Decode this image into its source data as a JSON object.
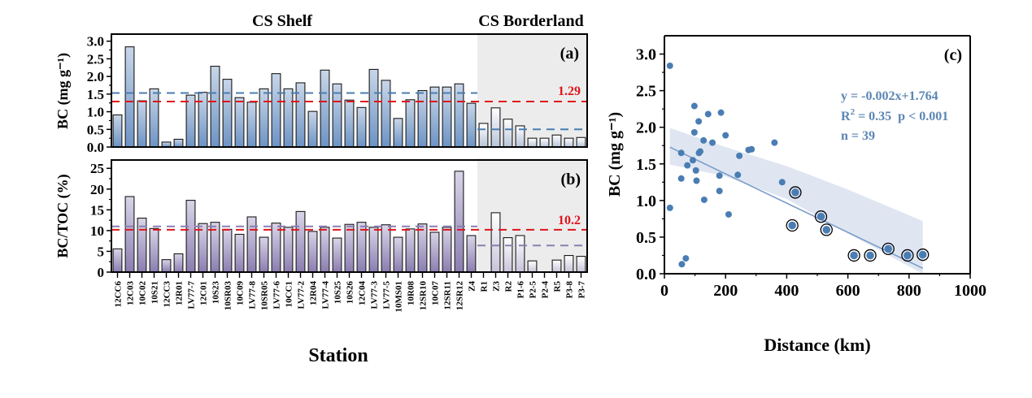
{
  "figure": {
    "region_titles": [
      "CS Shelf",
      "CS Borderland"
    ],
    "x_axis_title": "Station"
  },
  "chart_data": [
    {
      "id": "a",
      "type": "bar",
      "panel_tag": "(a)",
      "ylabel": "BC (mg g⁻¹)",
      "ylim": [
        0,
        3.2
      ],
      "yticks": [
        "0.0",
        "0.5",
        "1.0",
        "1.5",
        "2.0",
        "2.5",
        "3.0"
      ],
      "ytick_values": [
        0,
        0.5,
        1.0,
        1.5,
        2.0,
        2.5,
        3.0
      ],
      "categories": [
        "12CC6",
        "12C03",
        "10C02",
        "10S21",
        "12CC3",
        "12R01",
        "LV77-7",
        "12C01",
        "10S23",
        "10SR03",
        "10C09",
        "LV77-8",
        "10SR05",
        "LV77-6",
        "10CC1",
        "LV77-2",
        "12R04",
        "LV77-4",
        "10S25",
        "10S26",
        "12C04",
        "LV77-3",
        "LV77-5",
        "10MS01",
        "10R08",
        "12SR10",
        "10C07",
        "12SR11",
        "12SR12",
        "Z4",
        "R1",
        "Z3",
        "R2",
        "P1-6",
        "P2-5",
        "P2-4",
        "R5",
        "P3-8",
        "P3-7"
      ],
      "values": [
        0.91,
        2.84,
        1.31,
        1.65,
        0.14,
        0.22,
        1.47,
        1.55,
        2.29,
        1.92,
        1.4,
        1.27,
        1.65,
        2.08,
        1.65,
        1.82,
        1.01,
        2.18,
        1.79,
        1.33,
        1.12,
        2.2,
        1.89,
        0.81,
        1.34,
        1.6,
        1.7,
        1.7,
        1.79,
        1.24,
        0.67,
        1.11,
        0.79,
        0.6,
        0.25,
        0.25,
        0.34,
        0.25,
        0.27
      ],
      "shelf_count": 30,
      "reference_lines": [
        {
          "label": "1.29",
          "value": 1.29,
          "color": "#e0141c",
          "span": "all",
          "show_label": true
        },
        {
          "label": "shelf mean",
          "value": 1.53,
          "color": "#4a7db3",
          "span": "shelf",
          "show_label": false
        },
        {
          "label": "borderland mean",
          "value": 0.5,
          "color": "#4a7db3",
          "span": "borderland",
          "show_label": false
        }
      ],
      "bar_color_top": "#c9d6e8",
      "bar_color_bottom": "#6c93c4",
      "borderland_bar_top": "#ffffff",
      "borderland_bar_bottom": "#b7c4d8"
    },
    {
      "id": "b",
      "type": "bar",
      "panel_tag": "(b)",
      "ylabel": "BC/TOC (%)",
      "ylim": [
        0,
        27
      ],
      "yticks": [
        "0",
        "5",
        "10",
        "15",
        "20",
        "25"
      ],
      "ytick_values": [
        0,
        5,
        10,
        15,
        20,
        25
      ],
      "categories": [
        "12CC6",
        "12C03",
        "10C02",
        "10S21",
        "12CC3",
        "12R01",
        "LV77-7",
        "12C01",
        "10S23",
        "10SR03",
        "10C09",
        "LV77-8",
        "10SR05",
        "LV77-6",
        "10CC1",
        "LV77-2",
        "12R04",
        "LV77-4",
        "10S25",
        "10S26",
        "12C04",
        "LV77-3",
        "LV77-5",
        "10MS01",
        "10R08",
        "12SR10",
        "10C07",
        "12SR11",
        "12SR12",
        "Z4",
        "R1",
        "Z3",
        "R2",
        "P1-6",
        "P2-5",
        "P2-4",
        "R5",
        "P3-8",
        "P3-7"
      ],
      "values": [
        5.6,
        18.2,
        13.0,
        10.5,
        3.0,
        4.4,
        17.3,
        11.7,
        12.0,
        10.3,
        9.1,
        13.3,
        8.4,
        11.8,
        10.8,
        14.6,
        9.8,
        10.8,
        8.2,
        11.5,
        12.0,
        10.8,
        11.4,
        8.4,
        10.4,
        11.6,
        9.6,
        10.8,
        24.3,
        8.8,
        0,
        14.3,
        8.3,
        8.8,
        2.7,
        0,
        2.9,
        4.0,
        3.8
      ],
      "shelf_count": 30,
      "reference_lines": [
        {
          "label": "10.2",
          "value": 10.2,
          "color": "#e0141c",
          "span": "all",
          "show_label": true
        },
        {
          "label": "shelf mean",
          "value": 11.0,
          "color": "#8a7fb0",
          "span": "shelf",
          "show_label": false
        },
        {
          "label": "borderland mean",
          "value": 6.4,
          "color": "#8a7fb0",
          "span": "borderland",
          "show_label": false
        }
      ],
      "bar_color_top": "#dad5e8",
      "bar_color_bottom": "#8a7db0",
      "borderland_bar_top": "#ffffff",
      "borderland_bar_bottom": "#c9c3da"
    },
    {
      "id": "c",
      "type": "scatter",
      "panel_tag": "(c)",
      "xlabel": "Distance (km)",
      "ylabel": "BC (mg g⁻¹)",
      "xlim": [
        0,
        1000
      ],
      "ylim": [
        0,
        3.25
      ],
      "xticks": [
        "0",
        "200",
        "400",
        "600",
        "800",
        "1000"
      ],
      "xtick_values": [
        0,
        200,
        400,
        600,
        800,
        1000
      ],
      "yticks": [
        "0.0",
        "0.5",
        "1.0",
        "1.5",
        "2.0",
        "2.5",
        "3.0"
      ],
      "ytick_values": [
        0,
        0.5,
        1.0,
        1.5,
        2.0,
        2.5,
        3.0
      ],
      "point_color": "#4a7db3",
      "shelf_points": [
        [
          18,
          2.84
        ],
        [
          18,
          0.9
        ],
        [
          55,
          1.3
        ],
        [
          55,
          1.65
        ],
        [
          57,
          0.13
        ],
        [
          70,
          0.21
        ],
        [
          75,
          1.48
        ],
        [
          93,
          1.55
        ],
        [
          98,
          1.93
        ],
        [
          98,
          2.29
        ],
        [
          103,
          1.41
        ],
        [
          105,
          1.27
        ],
        [
          112,
          2.08
        ],
        [
          113,
          1.65
        ],
        [
          117,
          1.67
        ],
        [
          128,
          1.82
        ],
        [
          130,
          1.01
        ],
        [
          143,
          2.18
        ],
        [
          157,
          1.79
        ],
        [
          180,
          1.34
        ],
        [
          180,
          1.13
        ],
        [
          185,
          2.2
        ],
        [
          200,
          1.89
        ],
        [
          210,
          0.81
        ],
        [
          240,
          1.35
        ],
        [
          245,
          1.61
        ],
        [
          275,
          1.69
        ],
        [
          285,
          1.7
        ],
        [
          360,
          1.79
        ],
        [
          385,
          1.25
        ]
      ],
      "borderland_points": [
        [
          418,
          0.66
        ],
        [
          428,
          1.11
        ],
        [
          512,
          0.78
        ],
        [
          530,
          0.6
        ],
        [
          620,
          0.25
        ],
        [
          673,
          0.25
        ],
        [
          732,
          0.34
        ],
        [
          795,
          0.25
        ],
        [
          845,
          0.26
        ]
      ],
      "regression": {
        "slope": -0.002,
        "intercept": 1.764,
        "x_range": [
          18,
          845
        ],
        "line_color": "#7a9cc8",
        "band_color": "#dfe6f2"
      },
      "confidence_band": {
        "x": [
          18,
          200,
          400,
          600,
          845
        ],
        "upper": [
          1.99,
          1.73,
          1.47,
          1.15,
          0.72
        ],
        "lower": [
          1.49,
          1.33,
          1.02,
          0.55,
          0.0
        ]
      },
      "annotation": {
        "line1": "y = -0.002x+1.764",
        "line2_r": "R",
        "line2_sup": "2",
        "line2_rest": " = 0.35  p < 0.001",
        "line3": "n = 39"
      }
    }
  ]
}
